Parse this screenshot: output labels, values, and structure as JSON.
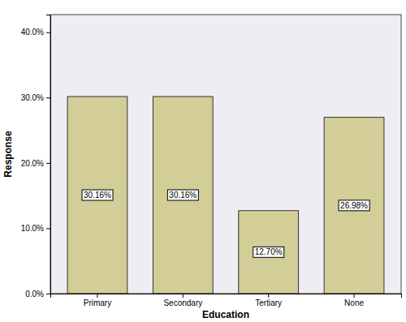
{
  "chart_data": {
    "type": "bar",
    "x_label": "Education",
    "y_label": "Response",
    "categories": [
      "Primary",
      "Secondary",
      "Tertiary",
      "None"
    ],
    "values": [
      30.16,
      30.16,
      12.7,
      26.98
    ],
    "value_labels": [
      "30.16%",
      "30.16%",
      "12.70%",
      "26.98%"
    ],
    "data_labels": true,
    "color": "#d3cd97",
    "ylim": [
      0,
      42.7
    ],
    "yticks": [
      {
        "value": 0,
        "label": "0.0%"
      },
      {
        "value": 10,
        "label": "10.0%"
      },
      {
        "value": 20,
        "label": "20.0%"
      },
      {
        "value": 30,
        "label": "30.0%"
      },
      {
        "value": 40,
        "label": "40.0%"
      }
    ],
    "grid": false
  }
}
